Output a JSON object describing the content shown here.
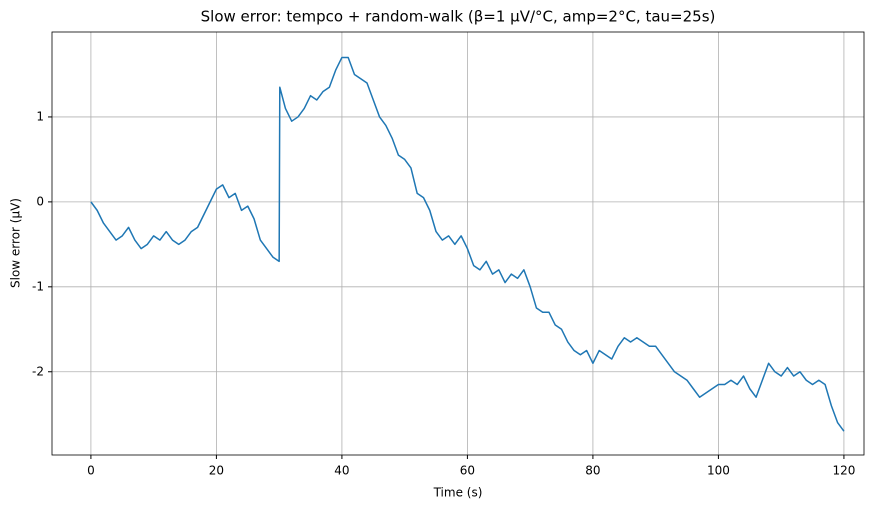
{
  "chart_data": {
    "type": "line",
    "title": "Slow error: tempco + random-walk (β=1 µV/°C, amp=2°C, tau=25s)",
    "x_label": "Time (s)",
    "y_label": "Slow error (µV)",
    "x": [
      0,
      1,
      2,
      3,
      4,
      5,
      6,
      7,
      8,
      9,
      10,
      11,
      12,
      13,
      14,
      15,
      16,
      17,
      18,
      19,
      20,
      21,
      22,
      23,
      24,
      25,
      26,
      27,
      28,
      29,
      30,
      30.1,
      31,
      32,
      33,
      34,
      35,
      36,
      37,
      38,
      39,
      40,
      41,
      42,
      43,
      44,
      45,
      46,
      47,
      48,
      49,
      50,
      51,
      52,
      53,
      54,
      55,
      56,
      57,
      58,
      59,
      60,
      61,
      62,
      63,
      64,
      65,
      66,
      67,
      68,
      69,
      70,
      71,
      72,
      73,
      74,
      75,
      76,
      77,
      78,
      79,
      80,
      81,
      82,
      83,
      84,
      85,
      86,
      87,
      88,
      89,
      90,
      91,
      92,
      93,
      94,
      95,
      96,
      97,
      98,
      99,
      100,
      101,
      102,
      103,
      104,
      105,
      106,
      107,
      108,
      109,
      110,
      111,
      112,
      113,
      114,
      115,
      116,
      117,
      118,
      119,
      120
    ],
    "series": [
      {
        "name": "Slow error",
        "color": "#1f77b4",
        "values": [
          0,
          -0.1,
          -0.25,
          -0.35,
          -0.45,
          -0.4,
          -0.3,
          -0.45,
          -0.55,
          -0.5,
          -0.4,
          -0.45,
          -0.35,
          -0.45,
          -0.5,
          -0.45,
          -0.35,
          -0.3,
          -0.15,
          0.0,
          0.15,
          0.2,
          0.05,
          0.1,
          -0.1,
          -0.05,
          -0.2,
          -0.45,
          -0.55,
          -0.65,
          -0.7,
          1.35,
          1.1,
          0.95,
          1.0,
          1.1,
          1.25,
          1.2,
          1.3,
          1.35,
          1.55,
          1.7,
          1.7,
          1.5,
          1.45,
          1.4,
          1.2,
          1.0,
          0.9,
          0.75,
          0.55,
          0.5,
          0.4,
          0.1,
          0.05,
          -0.1,
          -0.35,
          -0.45,
          -0.4,
          -0.5,
          -0.4,
          -0.55,
          -0.75,
          -0.8,
          -0.7,
          -0.85,
          -0.8,
          -0.95,
          -0.85,
          -0.9,
          -0.8,
          -1.0,
          -1.25,
          -1.3,
          -1.3,
          -1.45,
          -1.5,
          -1.65,
          -1.75,
          -1.8,
          -1.75,
          -1.9,
          -1.75,
          -1.8,
          -1.85,
          -1.7,
          -1.6,
          -1.65,
          -1.6,
          -1.65,
          -1.7,
          -1.7,
          -1.8,
          -1.9,
          -2.0,
          -2.05,
          -2.1,
          -2.2,
          -2.3,
          -2.25,
          -2.2,
          -2.15,
          -2.15,
          -2.1,
          -2.15,
          -2.05,
          -2.2,
          -2.3,
          -2.1,
          -1.9,
          -2.0,
          -2.05,
          -1.95,
          -2.05,
          -2.0,
          -2.1,
          -2.15,
          -2.1,
          -2.15,
          -2.4,
          -2.6,
          -2.7
        ]
      }
    ],
    "xlim": [
      -6.2,
      123.2
    ],
    "xticks": [
      0,
      20,
      40,
      60,
      80,
      100,
      120
    ],
    "ylim": [
      -2.98,
      2.0
    ],
    "yticks": [
      -2,
      -1,
      0,
      1
    ],
    "grid": true
  }
}
